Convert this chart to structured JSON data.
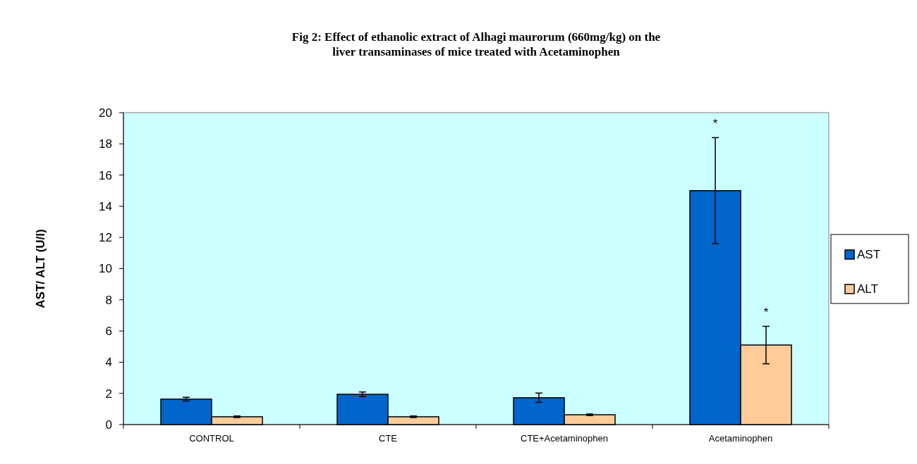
{
  "chart_data": {
    "type": "bar",
    "title": "Fig 2: Effect of ethanolic extract of Alhagi maurorum (660mg/kg) on the liver transaminases of mice treated with Acetaminophen",
    "ylabel": "AST/ ALT  (U/l)",
    "categories": [
      "CONTROL",
      "CTE",
      "CTE+Acetaminophen",
      "Acetaminophen"
    ],
    "series": [
      {
        "name": "AST",
        "color": "#0066cc",
        "values": [
          1.63,
          1.94,
          1.72,
          15.0
        ],
        "errors": [
          0.12,
          0.15,
          0.3,
          3.4
        ]
      },
      {
        "name": "ALT",
        "color": "#ffcc99",
        "values": [
          0.5,
          0.5,
          0.63,
          5.1
        ],
        "errors": [
          0.05,
          0.05,
          0.05,
          1.2
        ]
      }
    ],
    "annotations": [
      "*",
      "*"
    ],
    "ylim": [
      0,
      20
    ],
    "yticks": [
      0,
      2,
      4,
      6,
      8,
      10,
      12,
      14,
      16,
      18,
      20
    ],
    "grid": false,
    "legend": "right"
  }
}
